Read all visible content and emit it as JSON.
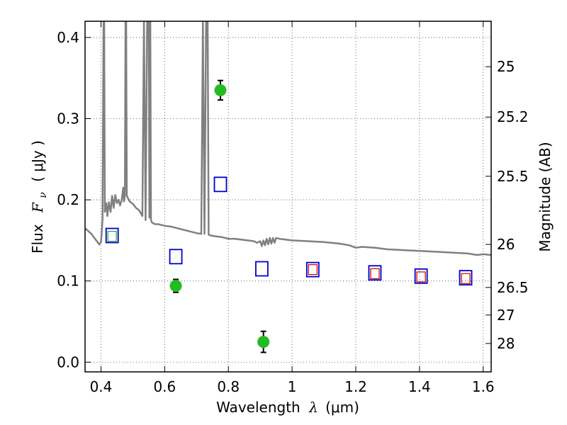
{
  "chart_data": {
    "type": "scatter",
    "xlabel_prefix": "Wavelength",
    "xlabel_symbol": "λ",
    "xlabel_unit": "(μm)",
    "ylabel_prefix": "Flux",
    "ylabel_symbol": "F",
    "ylabel_subscript": "ν",
    "ylabel_unit": "( μJy )",
    "ylabel_right": "Magnitude (AB)",
    "xlim": [
      0.35,
      1.625
    ],
    "ylim": [
      -0.012,
      0.42
    ],
    "grid": true,
    "x_ticks": [
      {
        "value": 0.4,
        "label": "0.4"
      },
      {
        "value": 0.6,
        "label": "0.6"
      },
      {
        "value": 0.8,
        "label": "0.8"
      },
      {
        "value": 1.0,
        "label": "1"
      },
      {
        "value": 1.2,
        "label": "1.2"
      },
      {
        "value": 1.4,
        "label": "1.4"
      },
      {
        "value": 1.6,
        "label": "1.6"
      }
    ],
    "y_ticks": [
      {
        "value": 0.0,
        "label": "0.0"
      },
      {
        "value": 0.1,
        "label": "0.1"
      },
      {
        "value": 0.2,
        "label": "0.2"
      },
      {
        "value": 0.3,
        "label": "0.3"
      },
      {
        "value": 0.4,
        "label": "0.4"
      }
    ],
    "mag_ticks": [
      {
        "value": 0.364,
        "label": "25"
      },
      {
        "value": 0.302,
        "label": "25.2"
      },
      {
        "value": 0.229,
        "label": "25.5"
      },
      {
        "value": 0.145,
        "label": "26"
      },
      {
        "value": 0.092,
        "label": "26.5"
      },
      {
        "value": 0.058,
        "label": "27"
      },
      {
        "value": 0.023,
        "label": "28"
      }
    ],
    "series": [
      {
        "kind": "model_spectrum",
        "color": "#808080",
        "points": [
          [
            0.35,
            0.165
          ],
          [
            0.37,
            0.158
          ],
          [
            0.385,
            0.15
          ],
          [
            0.395,
            0.145
          ],
          [
            0.4,
            0.148
          ],
          [
            0.405,
            0.175
          ],
          [
            0.408,
            0.42
          ],
          [
            0.41,
            0.42
          ],
          [
            0.412,
            0.185
          ],
          [
            0.417,
            0.196
          ],
          [
            0.42,
            0.18
          ],
          [
            0.425,
            0.197
          ],
          [
            0.43,
            0.185
          ],
          [
            0.435,
            0.205
          ],
          [
            0.44,
            0.19
          ],
          [
            0.445,
            0.206
          ],
          [
            0.45,
            0.196
          ],
          [
            0.455,
            0.2
          ],
          [
            0.46,
            0.193
          ],
          [
            0.465,
            0.2
          ],
          [
            0.47,
            0.215
          ],
          [
            0.472,
            0.198
          ],
          [
            0.475,
            0.205
          ],
          [
            0.477,
            0.42
          ],
          [
            0.479,
            0.42
          ],
          [
            0.481,
            0.205
          ],
          [
            0.49,
            0.198
          ],
          [
            0.5,
            0.195
          ],
          [
            0.51,
            0.19
          ],
          [
            0.52,
            0.187
          ],
          [
            0.53,
            0.18
          ],
          [
            0.535,
            0.42
          ],
          [
            0.54,
            0.175
          ],
          [
            0.545,
            0.42
          ],
          [
            0.55,
            0.42
          ],
          [
            0.552,
            0.178
          ],
          [
            0.555,
            0.42
          ],
          [
            0.557,
            0.175
          ],
          [
            0.56,
            0.172
          ],
          [
            0.57,
            0.17
          ],
          [
            0.58,
            0.17
          ],
          [
            0.6,
            0.168
          ],
          [
            0.62,
            0.167
          ],
          [
            0.64,
            0.165
          ],
          [
            0.66,
            0.163
          ],
          [
            0.68,
            0.161
          ],
          [
            0.7,
            0.159
          ],
          [
            0.715,
            0.158
          ],
          [
            0.72,
            0.42
          ],
          [
            0.725,
            0.158
          ],
          [
            0.73,
            0.42
          ],
          [
            0.735,
            0.42
          ],
          [
            0.738,
            0.157
          ],
          [
            0.745,
            0.156
          ],
          [
            0.76,
            0.155
          ],
          [
            0.78,
            0.154
          ],
          [
            0.8,
            0.152
          ],
          [
            0.82,
            0.152
          ],
          [
            0.84,
            0.151
          ],
          [
            0.86,
            0.15
          ],
          [
            0.88,
            0.149
          ],
          [
            0.89,
            0.147
          ],
          [
            0.9,
            0.149
          ],
          [
            0.905,
            0.143
          ],
          [
            0.91,
            0.15
          ],
          [
            0.915,
            0.144
          ],
          [
            0.92,
            0.152
          ],
          [
            0.925,
            0.145
          ],
          [
            0.93,
            0.153
          ],
          [
            0.935,
            0.146
          ],
          [
            0.94,
            0.153
          ],
          [
            0.945,
            0.147
          ],
          [
            0.95,
            0.153
          ],
          [
            0.96,
            0.152
          ],
          [
            0.98,
            0.151
          ],
          [
            1.0,
            0.15
          ],
          [
            1.05,
            0.149
          ],
          [
            1.1,
            0.148
          ],
          [
            1.15,
            0.146
          ],
          [
            1.18,
            0.144
          ],
          [
            1.2,
            0.141
          ],
          [
            1.22,
            0.142
          ],
          [
            1.26,
            0.141
          ],
          [
            1.3,
            0.139
          ],
          [
            1.35,
            0.138
          ],
          [
            1.4,
            0.137
          ],
          [
            1.45,
            0.136
          ],
          [
            1.5,
            0.135
          ],
          [
            1.55,
            0.134
          ],
          [
            1.58,
            0.132
          ],
          [
            1.6,
            0.133
          ],
          [
            1.625,
            0.132
          ]
        ]
      },
      {
        "kind": "model_photometry",
        "color": "#0000cc",
        "points": [
          [
            0.435,
            0.156
          ],
          [
            0.635,
            0.13
          ],
          [
            0.775,
            0.219
          ],
          [
            0.905,
            0.115
          ],
          [
            1.065,
            0.114
          ],
          [
            1.26,
            0.11
          ],
          [
            1.405,
            0.106
          ],
          [
            1.545,
            0.104
          ]
        ]
      },
      {
        "kind": "model_photometry_inner",
        "color": "#cc0000",
        "points": [
          [
            1.065,
            0.114
          ],
          [
            1.26,
            0.109
          ],
          [
            1.405,
            0.105
          ],
          [
            1.545,
            0.103
          ]
        ]
      },
      {
        "kind": "model_photometry_inner",
        "color": "#22aa22",
        "points": [
          [
            0.435,
            0.155
          ]
        ]
      },
      {
        "kind": "observed",
        "color": "#22bb22",
        "points": [
          {
            "x": 0.635,
            "y": 0.094,
            "err": 0.008
          },
          {
            "x": 0.775,
            "y": 0.335,
            "err": 0.012
          },
          {
            "x": 0.91,
            "y": 0.025,
            "err": 0.013
          }
        ]
      }
    ]
  }
}
